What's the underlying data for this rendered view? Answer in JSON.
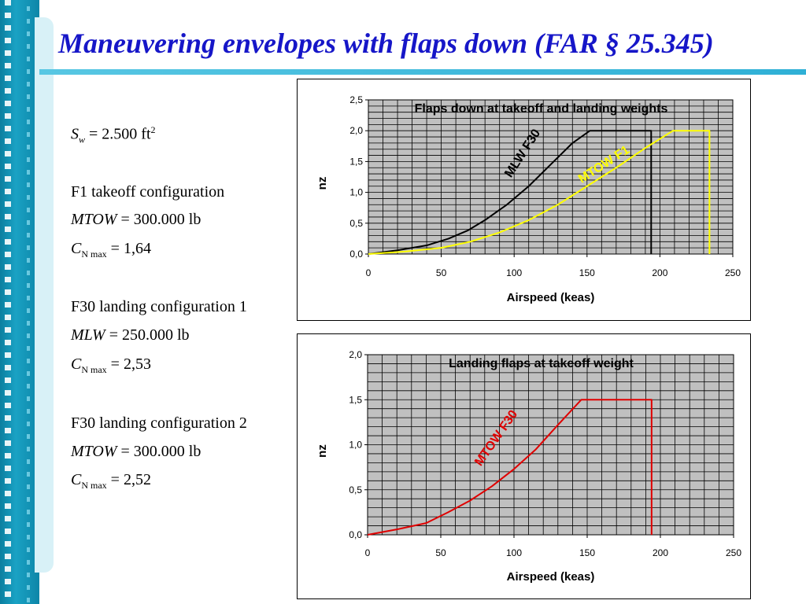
{
  "slide": {
    "title": "Maneuvering envelopes with flaps down (FAR § 25.345)"
  },
  "parameters": {
    "sw": {
      "symbol": "S",
      "sub": "w",
      "value": "= 2.500 ft",
      "sup": "2"
    },
    "groups": [
      {
        "heading": "F1  takeoff configuration",
        "weight_symbol": "MTOW",
        "weight_value": "= 300.000 lb",
        "cn_symbol": "C",
        "cn_sub": "N max",
        "cn_value": "= 1,64"
      },
      {
        "heading": "F30  landing configuration 1",
        "weight_symbol": "MLW",
        "weight_value": "= 250.000 lb",
        "cn_symbol": "C",
        "cn_sub": "N max",
        "cn_value": "= 2,53"
      },
      {
        "heading": "F30  landing configuration 2",
        "weight_symbol": "MTOW",
        "weight_value": "= 300.000 lb",
        "cn_symbol": "C",
        "cn_sub": "N max",
        "cn_value": "= 2,52"
      }
    ]
  },
  "chart_data": [
    {
      "type": "line",
      "title": "Flaps down at takeoff and landing weights",
      "xlabel": "Airspeed (keas)",
      "ylabel": "nz",
      "xlim": [
        0,
        250
      ],
      "ylim": [
        0,
        2.5
      ],
      "xticks": [
        "0",
        "50",
        "100",
        "150",
        "200",
        "250"
      ],
      "yticks": [
        "0,0",
        "0,5",
        "1,0",
        "1,5",
        "2,0",
        "2,5"
      ],
      "grid": true,
      "plot_background": "#c0c0c0",
      "series": [
        {
          "name": "MLW F30",
          "color": "#000000",
          "x": [
            0,
            20,
            40,
            55,
            68,
            80,
            95,
            110,
            125,
            140,
            152,
            194,
            194
          ],
          "y": [
            0,
            0.06,
            0.14,
            0.25,
            0.38,
            0.55,
            0.8,
            1.1,
            1.45,
            1.8,
            2.0,
            2.0,
            0
          ]
        },
        {
          "name": "MTOW F1",
          "color": "#ffff00",
          "x": [
            0,
            25,
            50,
            70,
            90,
            110,
            130,
            150,
            170,
            190,
            209,
            234,
            234
          ],
          "y": [
            0,
            0.04,
            0.1,
            0.2,
            0.35,
            0.55,
            0.8,
            1.1,
            1.4,
            1.72,
            2.0,
            2.0,
            0
          ]
        }
      ],
      "annotations": [
        {
          "text": "MLW F30",
          "color": "#000000"
        },
        {
          "text": "MTOW F1",
          "color": "#ffff00"
        }
      ]
    },
    {
      "type": "line",
      "title": "Landing flaps at takeoff weight",
      "xlabel": "Airspeed (keas)",
      "ylabel": "nz",
      "xlim": [
        0,
        250
      ],
      "ylim": [
        0,
        2.0
      ],
      "xticks": [
        "0",
        "50",
        "100",
        "150",
        "200",
        "250"
      ],
      "yticks": [
        "0,0",
        "0,5",
        "1,0",
        "1,5",
        "2,0"
      ],
      "grid": true,
      "plot_background": "#c0c0c0",
      "series": [
        {
          "name": "MTOW F30",
          "color": "#e00000",
          "x": [
            0,
            20,
            40,
            55,
            70,
            85,
            100,
            115,
            130,
            146,
            194,
            194
          ],
          "y": [
            0,
            0.06,
            0.13,
            0.25,
            0.38,
            0.54,
            0.73,
            0.95,
            1.22,
            1.5,
            1.5,
            0
          ]
        }
      ],
      "annotations": [
        {
          "text": "MTOW F30",
          "color": "#e00000"
        }
      ]
    }
  ]
}
